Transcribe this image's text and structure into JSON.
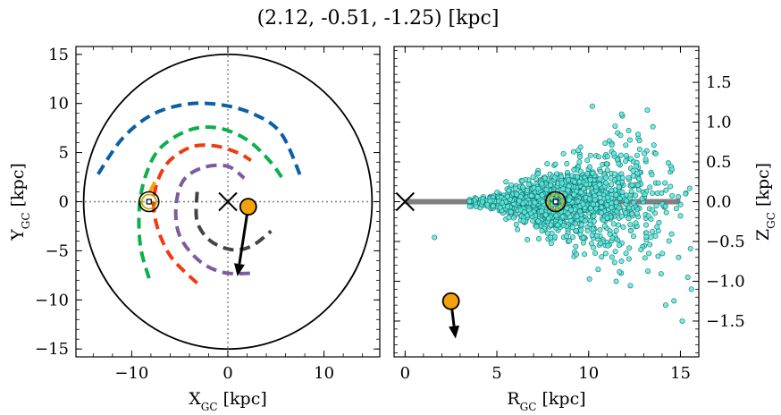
{
  "figure_title": "(2.12, -0.51, -1.25) [kpc]",
  "colors": {
    "frame": "#000000",
    "zero_line": "#808080",
    "marker_fill": "#f5a20a",
    "sun_ring": "#c8a800",
    "scatter_fill": "#5fe8dd",
    "scatter_edge": "#0f6f6a",
    "plane_band": "#808080"
  },
  "chart_data": [
    {
      "name": "left-panel",
      "type": "scatter",
      "xlabel_main": "X",
      "xlabel_sub": "GC",
      "xlabel_unit": " [kpc]",
      "ylabel_main": "Y",
      "ylabel_sub": "GC",
      "ylabel_unit": " [kpc]",
      "xlim": [
        -15.8,
        15.8
      ],
      "ylim": [
        -15.8,
        15.8
      ],
      "xticks": [
        -10,
        0,
        10
      ],
      "xtick_labels": [
        "−10",
        "0",
        "10"
      ],
      "yticks": [
        -15,
        -10,
        -5,
        0,
        5,
        10,
        15
      ],
      "ytick_labels": [
        "−15",
        "−10",
        "−5",
        "0",
        "5",
        "10",
        "15"
      ],
      "grid": false,
      "outer_circle_radius": 15,
      "galactic_center": [
        0,
        0
      ],
      "sun": [
        -8.2,
        0
      ],
      "object": [
        2.12,
        -0.51
      ],
      "velocity_arrow_end": [
        1.0,
        -7.6
      ],
      "spiral_arms": [
        {
          "color": "#0b5ea8",
          "points": [
            [
              -13.5,
              2.8
            ],
            [
              -11,
              6.4
            ],
            [
              -8,
              8.8
            ],
            [
              -4.5,
              9.9
            ],
            [
              -1,
              9.9
            ],
            [
              2.5,
              9.0
            ],
            [
              5.5,
              7.0
            ],
            [
              7.6,
              2.5
            ]
          ]
        },
        {
          "color": "#0cb04a",
          "points": [
            [
              -8.2,
              -7.8
            ],
            [
              -9.1,
              -4.5
            ],
            [
              -9.2,
              -0.5
            ],
            [
              -8.5,
              2.8
            ],
            [
              -7,
              5.5
            ],
            [
              -4,
              7.3
            ],
            [
              -1,
              7.5
            ],
            [
              2,
              6.3
            ],
            [
              4.3,
              4.2
            ],
            [
              5.6,
              2.5
            ]
          ]
        },
        {
          "color": "#f03a10",
          "points": [
            [
              -3.2,
              -8.3
            ],
            [
              -6,
              -5.5
            ],
            [
              -7.5,
              -2
            ],
            [
              -7.6,
              1
            ],
            [
              -6.4,
              3.8
            ],
            [
              -4,
              5.5
            ],
            [
              -1.5,
              5.7
            ],
            [
              1,
              5
            ],
            [
              2.4,
              4.2
            ]
          ]
        },
        {
          "color": "#7e5aa0",
          "points": [
            [
              2.3,
              -7.3
            ],
            [
              -0.5,
              -7.2
            ],
            [
              -3,
              -6
            ],
            [
              -5,
              -3.5
            ],
            [
              -5.4,
              -0.5
            ],
            [
              -4.6,
              2.2
            ],
            [
              -2.5,
              3.5
            ],
            [
              0,
              3.6
            ],
            [
              1.7,
              2.4
            ]
          ]
        },
        {
          "color": "#444444",
          "points": [
            [
              -3.2,
              1.0
            ],
            [
              -3.2,
              -2.0
            ],
            [
              -1.8,
              -4.0
            ],
            [
              0.5,
              -4.9
            ],
            [
              2.5,
              -4.5
            ],
            [
              4.5,
              -3.0
            ]
          ]
        },
        {
          "color": "#f5a20a",
          "points": [
            [
              -7.6,
              2.0
            ],
            [
              -8.3,
              0.6
            ]
          ]
        }
      ]
    },
    {
      "name": "right-panel",
      "type": "scatter",
      "xlabel_main": "R",
      "xlabel_sub": "GC",
      "xlabel_unit": " [kpc]",
      "ylabel_main": "Z",
      "ylabel_sub": "GC",
      "ylabel_unit": " [kpc]",
      "xlim": [
        -0.6,
        16.0
      ],
      "ylim": [
        -1.95,
        1.95
      ],
      "xticks": [
        0,
        5,
        10,
        15
      ],
      "xtick_labels": [
        "0",
        "5",
        "10",
        "15"
      ],
      "yticks": [
        -1.5,
        -1.0,
        -0.5,
        0.0,
        0.5,
        1.0,
        1.5
      ],
      "ytick_labels": [
        "−1.5",
        "−1.0",
        "−0.5",
        "0.0",
        "0.5",
        "1.0",
        "1.5"
      ],
      "grid": false,
      "galactic_center": [
        0,
        0
      ],
      "sun": [
        8.2,
        0
      ],
      "object": [
        2.5,
        -1.25
      ],
      "velocity_arrow_end": [
        2.75,
        -1.72
      ],
      "plane_band": {
        "x0": 0,
        "x1": 15,
        "z": 0
      }
    }
  ]
}
